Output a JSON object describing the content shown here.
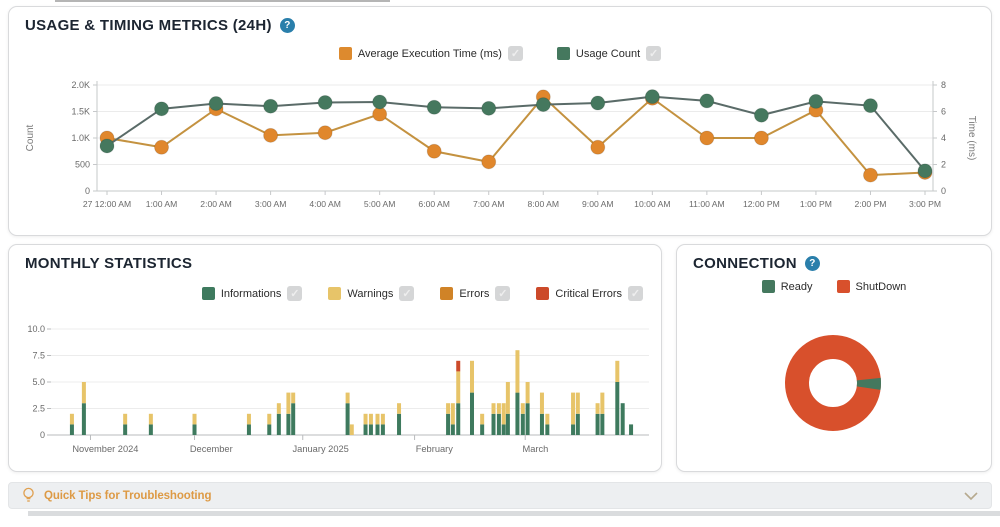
{
  "usage_panel": {
    "title": "USAGE & TIMING METRICS (24H)",
    "help_glyph": "?",
    "legend": [
      {
        "label": "Average Execution Time (ms)",
        "color": "#dd8a2e",
        "checked": true
      },
      {
        "label": "Usage Count",
        "color": "#45785e",
        "checked": true
      }
    ]
  },
  "monthly_panel": {
    "title": "MONTHLY STATISTICS",
    "legend": [
      {
        "label": "Informations",
        "color": "#3e7a5e",
        "checked": true
      },
      {
        "label": "Warnings",
        "color": "#e7c469",
        "checked": true
      },
      {
        "label": "Errors",
        "color": "#d08327",
        "checked": true
      },
      {
        "label": "Critical Errors",
        "color": "#cc4a2a",
        "checked": true
      }
    ]
  },
  "connection_panel": {
    "title": "CONNECTION",
    "help_glyph": "?",
    "legend": [
      {
        "label": "Ready",
        "color": "#44785e",
        "checked": null
      },
      {
        "label": "ShutDown",
        "color": "#d8502c",
        "checked": null
      }
    ]
  },
  "quick_tips": {
    "label": "Quick Tips for Troubleshooting"
  },
  "chart_data": [
    {
      "id": "usage_timing",
      "type": "line",
      "title": "USAGE & TIMING METRICS (24H)",
      "x": [
        "27 12:00 AM",
        "1:00 AM",
        "2:00 AM",
        "3:00 AM",
        "4:00 AM",
        "5:00 AM",
        "6:00 AM",
        "7:00 AM",
        "8:00 AM",
        "9:00 AM",
        "10:00 AM",
        "11:00 AM",
        "12:00 PM",
        "1:00 PM",
        "2:00 PM",
        "3:00 PM"
      ],
      "left_axis": {
        "label": "Count",
        "min": 0,
        "max": 2000,
        "ticks": [
          "0",
          "500",
          "1.0K",
          "1.5K",
          "2.0K"
        ]
      },
      "right_axis": {
        "label": "Time (ms)",
        "min": 0,
        "max": 8,
        "ticks": [
          "0",
          "2",
          "4",
          "6",
          "8"
        ]
      },
      "grid": true,
      "legend_position": "top-center",
      "series": [
        {
          "name": "Average Execution Time (ms)",
          "axis": "right",
          "marker_color": "#e0872c",
          "line_color": "#c49240",
          "values": [
            4.0,
            3.3,
            6.2,
            4.2,
            4.4,
            5.8,
            3.0,
            2.2,
            7.1,
            3.3,
            7.0,
            4.0,
            4.0,
            6.1,
            1.2,
            1.4
          ]
        },
        {
          "name": "Usage Count",
          "axis": "left",
          "marker_color": "#45785e",
          "line_color": "#5a6b68",
          "values": [
            850,
            1550,
            1650,
            1600,
            1670,
            1680,
            1580,
            1560,
            1630,
            1660,
            1780,
            1700,
            1430,
            1690,
            1610,
            380
          ]
        }
      ]
    },
    {
      "id": "monthly_statistics",
      "type": "bar",
      "stacked": true,
      "title": "MONTHLY STATISTICS",
      "ylim": [
        0,
        10
      ],
      "yticks": [
        "0",
        "2.5",
        "5.0",
        "7.5",
        "10.0"
      ],
      "grid": true,
      "legend_position": "top-right",
      "series_names": [
        "Informations",
        "Warnings",
        "Errors",
        "Critical Errors"
      ],
      "colors": [
        "#3e7a5e",
        "#e7c469",
        "#d08327",
        "#cc4a2a"
      ],
      "months": [
        {
          "label": "November 2024",
          "label_pos": 0.091,
          "tick_pos": 0.066
        },
        {
          "label": "December",
          "label_pos": 0.268,
          "tick_pos": 0.24
        },
        {
          "label": "January 2025",
          "label_pos": 0.451,
          "tick_pos": 0.421
        },
        {
          "label": "February",
          "label_pos": 0.641,
          "tick_pos": 0.608
        },
        {
          "label": "March",
          "label_pos": 0.81,
          "tick_pos": 0.793
        }
      ],
      "bars": [
        {
          "pos": 0.035,
          "v": [
            1,
            1,
            0,
            0
          ]
        },
        {
          "pos": 0.055,
          "v": [
            3,
            2,
            0,
            0
          ]
        },
        {
          "pos": 0.124,
          "v": [
            1,
            1,
            0,
            0
          ]
        },
        {
          "pos": 0.167,
          "v": [
            1,
            1,
            0,
            0
          ]
        },
        {
          "pos": 0.24,
          "v": [
            1,
            1,
            0,
            0
          ]
        },
        {
          "pos": 0.331,
          "v": [
            1,
            1,
            0,
            0
          ]
        },
        {
          "pos": 0.365,
          "v": [
            1,
            1,
            0,
            0
          ]
        },
        {
          "pos": 0.381,
          "v": [
            2,
            1,
            0,
            0
          ]
        },
        {
          "pos": 0.397,
          "v": [
            2,
            2,
            0,
            0
          ]
        },
        {
          "pos": 0.405,
          "v": [
            3,
            1,
            0,
            0
          ]
        },
        {
          "pos": 0.496,
          "v": [
            3,
            1,
            0,
            0
          ]
        },
        {
          "pos": 0.503,
          "v": [
            0,
            1,
            0,
            0
          ]
        },
        {
          "pos": 0.526,
          "v": [
            1,
            1,
            0,
            0
          ]
        },
        {
          "pos": 0.535,
          "v": [
            1,
            1,
            0,
            0
          ]
        },
        {
          "pos": 0.546,
          "v": [
            1,
            1,
            0,
            0
          ]
        },
        {
          "pos": 0.555,
          "v": [
            1,
            1,
            0,
            0
          ]
        },
        {
          "pos": 0.582,
          "v": [
            2,
            1,
            0,
            0
          ]
        },
        {
          "pos": 0.664,
          "v": [
            2,
            1,
            0,
            0
          ]
        },
        {
          "pos": 0.672,
          "v": [
            1,
            2,
            0,
            0
          ]
        },
        {
          "pos": 0.681,
          "v": [
            3,
            3,
            0,
            1
          ]
        },
        {
          "pos": 0.704,
          "v": [
            4,
            3,
            0,
            0
          ]
        },
        {
          "pos": 0.721,
          "v": [
            1,
            1,
            0,
            0
          ]
        },
        {
          "pos": 0.74,
          "v": [
            2,
            1,
            0,
            0
          ]
        },
        {
          "pos": 0.749,
          "v": [
            2,
            1,
            0,
            0
          ]
        },
        {
          "pos": 0.757,
          "v": [
            1,
            2,
            0,
            0
          ]
        },
        {
          "pos": 0.764,
          "v": [
            2,
            3,
            0,
            0
          ]
        },
        {
          "pos": 0.78,
          "v": [
            4,
            4,
            0,
            0
          ]
        },
        {
          "pos": 0.789,
          "v": [
            2,
            1,
            0,
            0
          ]
        },
        {
          "pos": 0.797,
          "v": [
            3,
            2,
            0,
            0
          ]
        },
        {
          "pos": 0.821,
          "v": [
            2,
            2,
            0,
            0
          ]
        },
        {
          "pos": 0.83,
          "v": [
            1,
            1,
            0,
            0
          ]
        },
        {
          "pos": 0.873,
          "v": [
            1,
            3,
            0,
            0
          ]
        },
        {
          "pos": 0.881,
          "v": [
            2,
            2,
            0,
            0
          ]
        },
        {
          "pos": 0.914,
          "v": [
            2,
            1,
            0,
            0
          ]
        },
        {
          "pos": 0.922,
          "v": [
            2,
            2,
            0,
            0
          ]
        },
        {
          "pos": 0.947,
          "v": [
            5,
            2,
            0,
            0
          ]
        },
        {
          "pos": 0.956,
          "v": [
            3,
            0,
            0,
            0
          ]
        },
        {
          "pos": 0.97,
          "v": [
            1,
            0,
            0,
            0
          ]
        }
      ]
    },
    {
      "id": "connection",
      "type": "pie",
      "donut": true,
      "title": "CONNECTION",
      "slices": [
        {
          "label": "Ready",
          "value": 4,
          "color": "#44785e"
        },
        {
          "label": "ShutDown",
          "value": 96,
          "color": "#d8502c"
        }
      ]
    }
  ]
}
